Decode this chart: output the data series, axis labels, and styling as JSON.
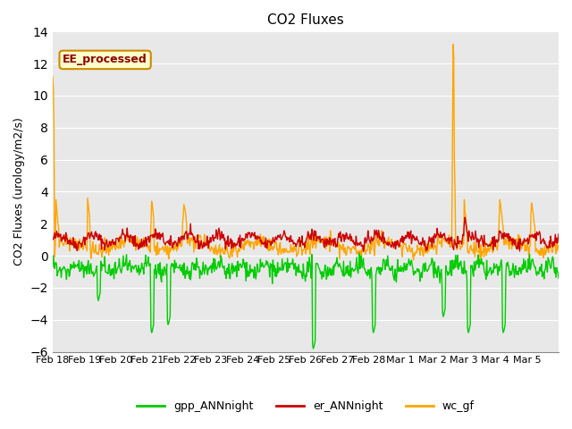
{
  "title": "CO2 Fluxes",
  "ylabel": "CO2 Fluxes (urology/m2/s)",
  "xlabel": "",
  "ylim": [
    -6,
    14
  ],
  "yticks": [
    -6,
    -4,
    -2,
    0,
    2,
    4,
    6,
    8,
    10,
    12,
    14
  ],
  "annotation": "EE_processed",
  "background_color": "#e8e8e8",
  "series": {
    "gpp_ANNnight": {
      "color": "#00cc00",
      "linewidth": 1.0
    },
    "er_ANNnight": {
      "color": "#cc0000",
      "linewidth": 1.0
    },
    "wc_gf": {
      "color": "#ffa500",
      "linewidth": 1.0
    }
  },
  "legend": {
    "gpp_ANNnight": {
      "color": "#00cc00",
      "label": "gpp_ANNnight"
    },
    "er_ANNnight": {
      "color": "#cc0000",
      "label": "er_ANNnight"
    },
    "wc_gf": {
      "color": "#ffa500",
      "label": "wc_gf"
    }
  },
  "xticklabels": [
    "Feb 18",
    "Feb 19",
    "Feb 20",
    "Feb 21",
    "Feb 22",
    "Feb 23",
    "Feb 24",
    "Feb 25",
    "Feb 26",
    "Feb 27",
    "Feb 28",
    "Mar 1",
    "Mar 2",
    "Mar 3",
    "Mar 4",
    "Mar 5"
  ]
}
